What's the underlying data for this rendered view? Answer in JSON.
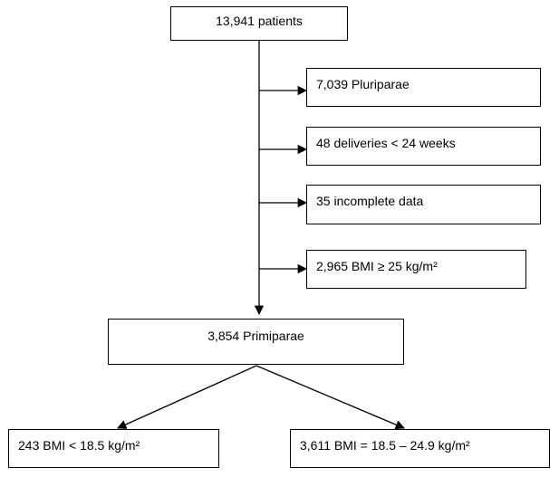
{
  "flowchart": {
    "start": "13,941 patients",
    "exclusions": [
      "7,039 Pluriparae",
      "48 deliveries  < 24 weeks",
      "35 incomplete data",
      "2,965 BMI ≥ 25 kg/m²"
    ],
    "cohort": "3,854 Primiparae",
    "groups": [
      "243 BMI < 18.5 kg/m²",
      "3,611 BMI = 18.5 – 24.9 kg/m²"
    ]
  }
}
